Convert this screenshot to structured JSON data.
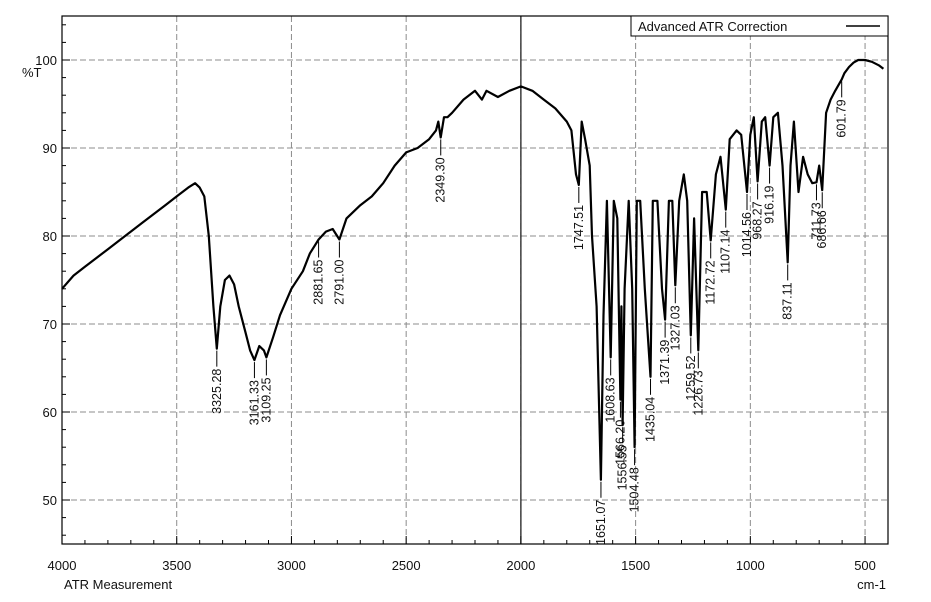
{
  "chart_data": {
    "type": "line",
    "ylabel": "%T",
    "xlabel_left": "ATR Measurement",
    "xlabel_right": "cm-1",
    "xlim": [
      4000,
      400
    ],
    "ylim": [
      45,
      105
    ],
    "x_ticks": [
      4000,
      3500,
      3000,
      2500,
      2000,
      1500,
      1000,
      500
    ],
    "y_ticks": [
      50,
      60,
      70,
      80,
      90,
      100
    ],
    "grid": true,
    "legend": {
      "position": "top-right",
      "entries": [
        "Advanced ATR Correction"
      ]
    },
    "series": [
      {
        "name": "Advanced ATR Correction",
        "color": "#000000",
        "x": [
          4000,
          3950,
          3900,
          3850,
          3800,
          3750,
          3700,
          3650,
          3600,
          3550,
          3500,
          3450,
          3420,
          3400,
          3380,
          3360,
          3340,
          3325.28,
          3310,
          3290,
          3270,
          3250,
          3230,
          3200,
          3180,
          3161.33,
          3140,
          3120,
          3109.25,
          3080,
          3050,
          3000,
          2950,
          2920,
          2881.65,
          2850,
          2820,
          2791,
          2760,
          2700,
          2650,
          2600,
          2550,
          2500,
          2450,
          2400,
          2370,
          2360,
          2349.3,
          2335,
          2320,
          2300,
          2250,
          2200,
          2170,
          2150,
          2100,
          2050,
          2000,
          1950,
          1900,
          1850,
          1800,
          1780,
          1760,
          1747.51,
          1735,
          1720,
          1700,
          1690,
          1670,
          1651.07,
          1640,
          1625,
          1608.63,
          1595,
          1580,
          1566.2,
          1562,
          1556.55,
          1548,
          1530,
          1515,
          1504.48,
          1495,
          1480,
          1460,
          1445,
          1435.04,
          1425,
          1405,
          1385,
          1371.39,
          1355,
          1340,
          1327.03,
          1310,
          1290,
          1275,
          1259.52,
          1245,
          1226.73,
          1210,
          1190,
          1172.72,
          1150,
          1130,
          1107.14,
          1090,
          1060,
          1040,
          1014.56,
          1000,
          985,
          968.27,
          950,
          935,
          916.19,
          900,
          880,
          860,
          837.11,
          825,
          810,
          790,
          770,
          750,
          730,
          711.73,
          700,
          686.66,
          670,
          650,
          630,
          601.79,
          590,
          570,
          550,
          530,
          500,
          470,
          440,
          420
        ],
        "y": [
          74,
          75.5,
          76.5,
          77.5,
          78.5,
          79.5,
          80.5,
          81.5,
          82.5,
          83.5,
          84.5,
          85.5,
          86,
          85.5,
          84.5,
          80,
          72,
          67.2,
          72,
          75,
          75.5,
          74.5,
          72,
          69,
          67,
          65.9,
          67.5,
          67,
          66.2,
          68.5,
          71,
          74,
          76,
          78,
          79.6,
          80.5,
          80.8,
          79.6,
          82,
          83.5,
          84.5,
          86,
          88,
          89.5,
          90,
          91,
          92,
          93,
          91.2,
          93.5,
          93.5,
          94,
          95.5,
          96.5,
          95.5,
          96.5,
          95.8,
          96.5,
          97,
          96.5,
          95.5,
          94.5,
          93,
          92,
          87,
          85.8,
          93,
          91,
          88,
          80,
          72,
          52.3,
          71,
          84,
          66.2,
          84,
          82,
          61.4,
          72,
          58.5,
          74,
          84,
          74,
          56,
          84,
          84,
          74,
          68,
          64,
          84,
          84,
          74,
          70.5,
          84,
          84,
          74.4,
          84,
          87,
          84,
          68.7,
          82,
          67,
          85,
          85,
          79.5,
          87,
          89,
          83,
          91,
          92,
          91.5,
          85,
          91.5,
          93.5,
          86.2,
          93,
          93.5,
          88,
          93.5,
          94,
          88,
          77,
          88,
          93,
          85,
          89,
          87,
          86,
          86.1,
          88,
          85.2,
          94,
          95.5,
          96.5,
          97.8,
          98.5,
          99.2,
          99.7,
          100,
          100,
          99.8,
          99.4,
          99
        ]
      }
    ],
    "peaks": [
      {
        "x": 3325.28,
        "label": "3325.28"
      },
      {
        "x": 3161.33,
        "label": "3161.33"
      },
      {
        "x": 3109.25,
        "label": "3109.25"
      },
      {
        "x": 2881.65,
        "label": "2881.65"
      },
      {
        "x": 2791.0,
        "label": "2791.00"
      },
      {
        "x": 2349.3,
        "label": "2349.30"
      },
      {
        "x": 1747.51,
        "label": "1747.51"
      },
      {
        "x": 1651.07,
        "label": "1651.07"
      },
      {
        "x": 1608.63,
        "label": "1608.63"
      },
      {
        "x": 1566.2,
        "label": "1566.20"
      },
      {
        "x": 1556.55,
        "label": "1556.55"
      },
      {
        "x": 1504.48,
        "label": "1504.48"
      },
      {
        "x": 1435.04,
        "label": "1435.04"
      },
      {
        "x": 1371.39,
        "label": "1371.39"
      },
      {
        "x": 1327.03,
        "label": "1327.03"
      },
      {
        "x": 1259.52,
        "label": "1259.52"
      },
      {
        "x": 1226.73,
        "label": "1226.73"
      },
      {
        "x": 1172.72,
        "label": "1172.72"
      },
      {
        "x": 1107.14,
        "label": "1107.14"
      },
      {
        "x": 1014.56,
        "label": "1014.56"
      },
      {
        "x": 968.27,
        "label": "968.27"
      },
      {
        "x": 916.19,
        "label": "916.19"
      },
      {
        "x": 837.11,
        "label": "837.11"
      },
      {
        "x": 711.73,
        "label": "711.73"
      },
      {
        "x": 686.66,
        "label": "686.66"
      },
      {
        "x": 601.79,
        "label": "601.79"
      }
    ]
  }
}
